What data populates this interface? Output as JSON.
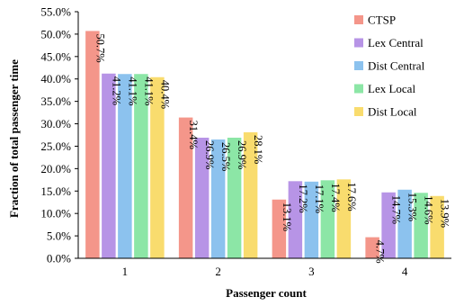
{
  "chart_data": {
    "type": "bar",
    "title": "",
    "xlabel": "Passenger count",
    "ylabel": "Fraction of total passenger time",
    "categories": [
      "1",
      "2",
      "3",
      "4"
    ],
    "ylim": [
      0,
      55
    ],
    "ytick_step": 5,
    "ytick_format": "%",
    "grid": false,
    "legend_position": "top-right",
    "series": [
      {
        "name": "CTSP",
        "color": "#f4968a",
        "values": [
          50.7,
          31.4,
          13.1,
          4.7
        ],
        "labels": [
          "50.7%",
          "31.4%",
          "13.1%",
          "4.7%"
        ]
      },
      {
        "name": "Lex Central",
        "color": "#b794e6",
        "values": [
          41.2,
          26.9,
          17.2,
          14.7
        ],
        "labels": [
          "41.2%",
          "26.9%",
          "17.2%",
          "14.7%"
        ]
      },
      {
        "name": "Dist Central",
        "color": "#8cc2ee",
        "values": [
          41.1,
          26.5,
          17.1,
          15.3
        ],
        "labels": [
          "41.1%",
          "26.5%",
          "17.1%",
          "15.3%"
        ]
      },
      {
        "name": "Lex Local",
        "color": "#8ce6a6",
        "values": [
          41.1,
          26.9,
          17.4,
          14.6
        ],
        "labels": [
          "41.1%",
          "26.9%",
          "17.4%",
          "14.6%"
        ]
      },
      {
        "name": "Dist Local",
        "color": "#f9dc6e",
        "values": [
          40.4,
          28.1,
          17.6,
          13.9
        ],
        "labels": [
          "40.4%",
          "28.1%",
          "17.6%",
          "13.9%"
        ]
      }
    ]
  }
}
